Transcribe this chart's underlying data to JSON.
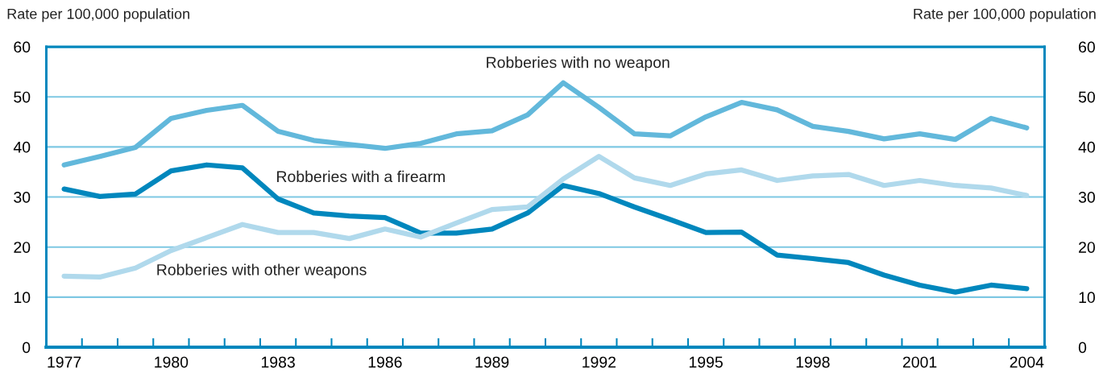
{
  "chart_data": {
    "type": "line",
    "ylabel": "Rate per 100,000 population",
    "y2label": "Rate per 100,000 population",
    "x": [
      1977,
      1978,
      1979,
      1980,
      1981,
      1982,
      1983,
      1984,
      1985,
      1986,
      1987,
      1988,
      1989,
      1990,
      1991,
      1992,
      1993,
      1994,
      1995,
      1996,
      1997,
      1998,
      1999,
      2000,
      2001,
      2002,
      2003,
      2004
    ],
    "series": [
      {
        "name": "Robberies with no weapon",
        "color": "#62b8db",
        "values": [
          36.4,
          38.1,
          39.9,
          45.7,
          47.3,
          48.3,
          43.1,
          41.3,
          40.5,
          39.7,
          40.7,
          42.6,
          43.2,
          46.4,
          52.8,
          47.9,
          42.6,
          42.2,
          46.0,
          48.9,
          47.4,
          44.1,
          43.1,
          41.6,
          42.6,
          41.5,
          45.7,
          43.8
        ]
      },
      {
        "name": "Robberies with a firearm",
        "color": "#0087bd",
        "values": [
          31.6,
          30.1,
          30.6,
          35.2,
          36.4,
          35.8,
          29.6,
          26.8,
          26.2,
          25.9,
          22.8,
          22.8,
          23.6,
          26.8,
          32.3,
          30.7,
          28.0,
          25.5,
          22.9,
          23.0,
          18.4,
          17.7,
          16.9,
          14.4,
          12.4,
          11.0,
          12.4,
          11.7
        ]
      },
      {
        "name": "Robberies with other weapons",
        "color": "#b0d9ec",
        "values": [
          14.2,
          14.0,
          15.8,
          19.3,
          21.9,
          24.5,
          22.9,
          22.9,
          21.7,
          23.6,
          22.0,
          24.8,
          27.5,
          28.0,
          33.6,
          38.1,
          33.8,
          32.3,
          34.6,
          35.4,
          33.3,
          34.2,
          34.5,
          32.3,
          33.3,
          32.3,
          31.8,
          30.3
        ]
      }
    ],
    "xlim": [
      1976.5,
      2004.5
    ],
    "xticks": [
      1977,
      1980,
      1983,
      1986,
      1989,
      1992,
      1995,
      1998,
      2001,
      2004,
      {
        "value": 1977.5,
        "label": null
      },
      {
        "value": 1978.5,
        "label": null
      },
      {
        "value": 1979.5,
        "label": null
      },
      {
        "value": 1980.5,
        "label": null
      },
      {
        "value": 1981.5,
        "label": null
      },
      {
        "value": 1982.5,
        "label": null
      },
      {
        "value": 1983.5,
        "label": null
      },
      {
        "value": 1984.5,
        "label": null
      },
      {
        "value": 1985.5,
        "label": null
      },
      {
        "value": 1986.5,
        "label": null
      },
      {
        "value": 1987.5,
        "label": null
      },
      {
        "value": 1988.5,
        "label": null
      },
      {
        "value": 1989.5,
        "label": null
      },
      {
        "value": 1990.5,
        "label": null
      },
      {
        "value": 1991.5,
        "label": null
      },
      {
        "value": 1992.5,
        "label": null
      },
      {
        "value": 1993.5,
        "label": null
      },
      {
        "value": 1994.5,
        "label": null
      },
      {
        "value": 1995.5,
        "label": null
      },
      {
        "value": 1996.5,
        "label": null
      },
      {
        "value": 1997.5,
        "label": null
      },
      {
        "value": 1998.5,
        "label": null
      },
      {
        "value": 1999.5,
        "label": null
      },
      {
        "value": 2000.5,
        "label": null
      },
      {
        "value": 2001.5,
        "label": null
      },
      {
        "value": 2002.5,
        "label": null
      },
      {
        "value": 2003.5,
        "label": null
      }
    ],
    "ylim": [
      0,
      60
    ],
    "yticks": [
      0,
      10,
      20,
      30,
      40,
      50,
      60
    ],
    "y2lim": [
      0,
      60
    ],
    "y2ticks": [
      0,
      10,
      20,
      30,
      40,
      50,
      60
    ],
    "grid": "y",
    "legend": false,
    "marker": "none",
    "line_style": "solid"
  }
}
